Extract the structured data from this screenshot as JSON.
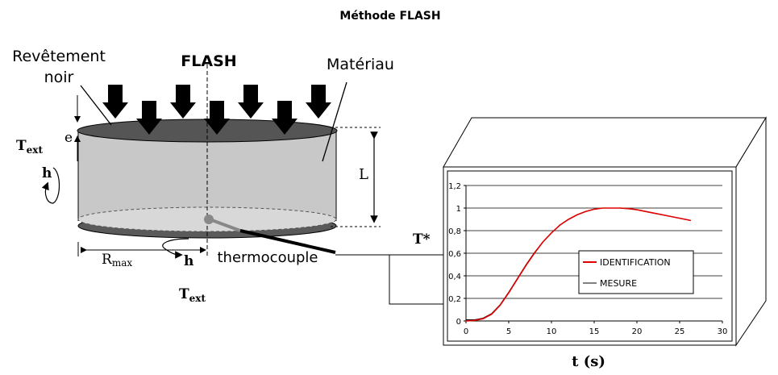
{
  "title": "Méthode FLASH",
  "labels": {
    "coating_line1": "Revêtement",
    "coating_line2": "noir",
    "flash": "FLASH",
    "material": "Matériau",
    "thickness": "e",
    "length": "L",
    "thermocouple": "thermocouple",
    "t_ext": "T",
    "t_ext_sub": "ext",
    "h": "h",
    "r_max": "R",
    "r_max_sub": "max",
    "t_star": "T*",
    "xlabel": "t (s)"
  },
  "chart_data": {
    "type": "line",
    "xlim": [
      0,
      30
    ],
    "ylim": [
      0,
      1.2
    ],
    "x_ticks": [
      "0",
      "5",
      "10",
      "15",
      "20",
      "25",
      "30"
    ],
    "y_ticks": [
      "0",
      "0,2",
      "0,4",
      "0,6",
      "0,8",
      "1",
      "1,2"
    ],
    "grid": true,
    "legend_position": "right",
    "xlabel": "t (s)",
    "series": [
      {
        "name": "IDENTIFICATION",
        "color": "#e00000",
        "x": [
          0,
          1,
          2,
          3,
          4,
          5,
          6,
          7,
          8,
          9,
          10,
          11,
          12,
          13,
          14,
          15,
          16,
          17,
          18,
          19,
          20,
          21,
          22,
          23,
          24,
          25,
          26.3
        ],
        "y": [
          0,
          0.005,
          0.02,
          0.06,
          0.14,
          0.25,
          0.37,
          0.49,
          0.6,
          0.7,
          0.78,
          0.85,
          0.9,
          0.94,
          0.97,
          0.99,
          1.0,
          1.0,
          1.0,
          0.995,
          0.985,
          0.97,
          0.955,
          0.94,
          0.925,
          0.91,
          0.89
        ]
      },
      {
        "name": "MESURE",
        "color": "#000000",
        "x": [
          0,
          1,
          2,
          3,
          4,
          5,
          6,
          7,
          8,
          9,
          10,
          11,
          12,
          13,
          14,
          15,
          16,
          17,
          18,
          19,
          20,
          21,
          22,
          23,
          24,
          25,
          26.3
        ],
        "y": [
          0.01,
          0.01,
          0.025,
          0.065,
          0.145,
          0.255,
          0.375,
          0.495,
          0.605,
          0.7,
          0.78,
          0.85,
          0.9,
          0.94,
          0.97,
          0.99,
          1.0,
          1.0,
          1.0,
          0.995,
          0.985,
          0.97,
          0.955,
          0.94,
          0.925,
          0.91,
          0.89
        ]
      }
    ]
  }
}
